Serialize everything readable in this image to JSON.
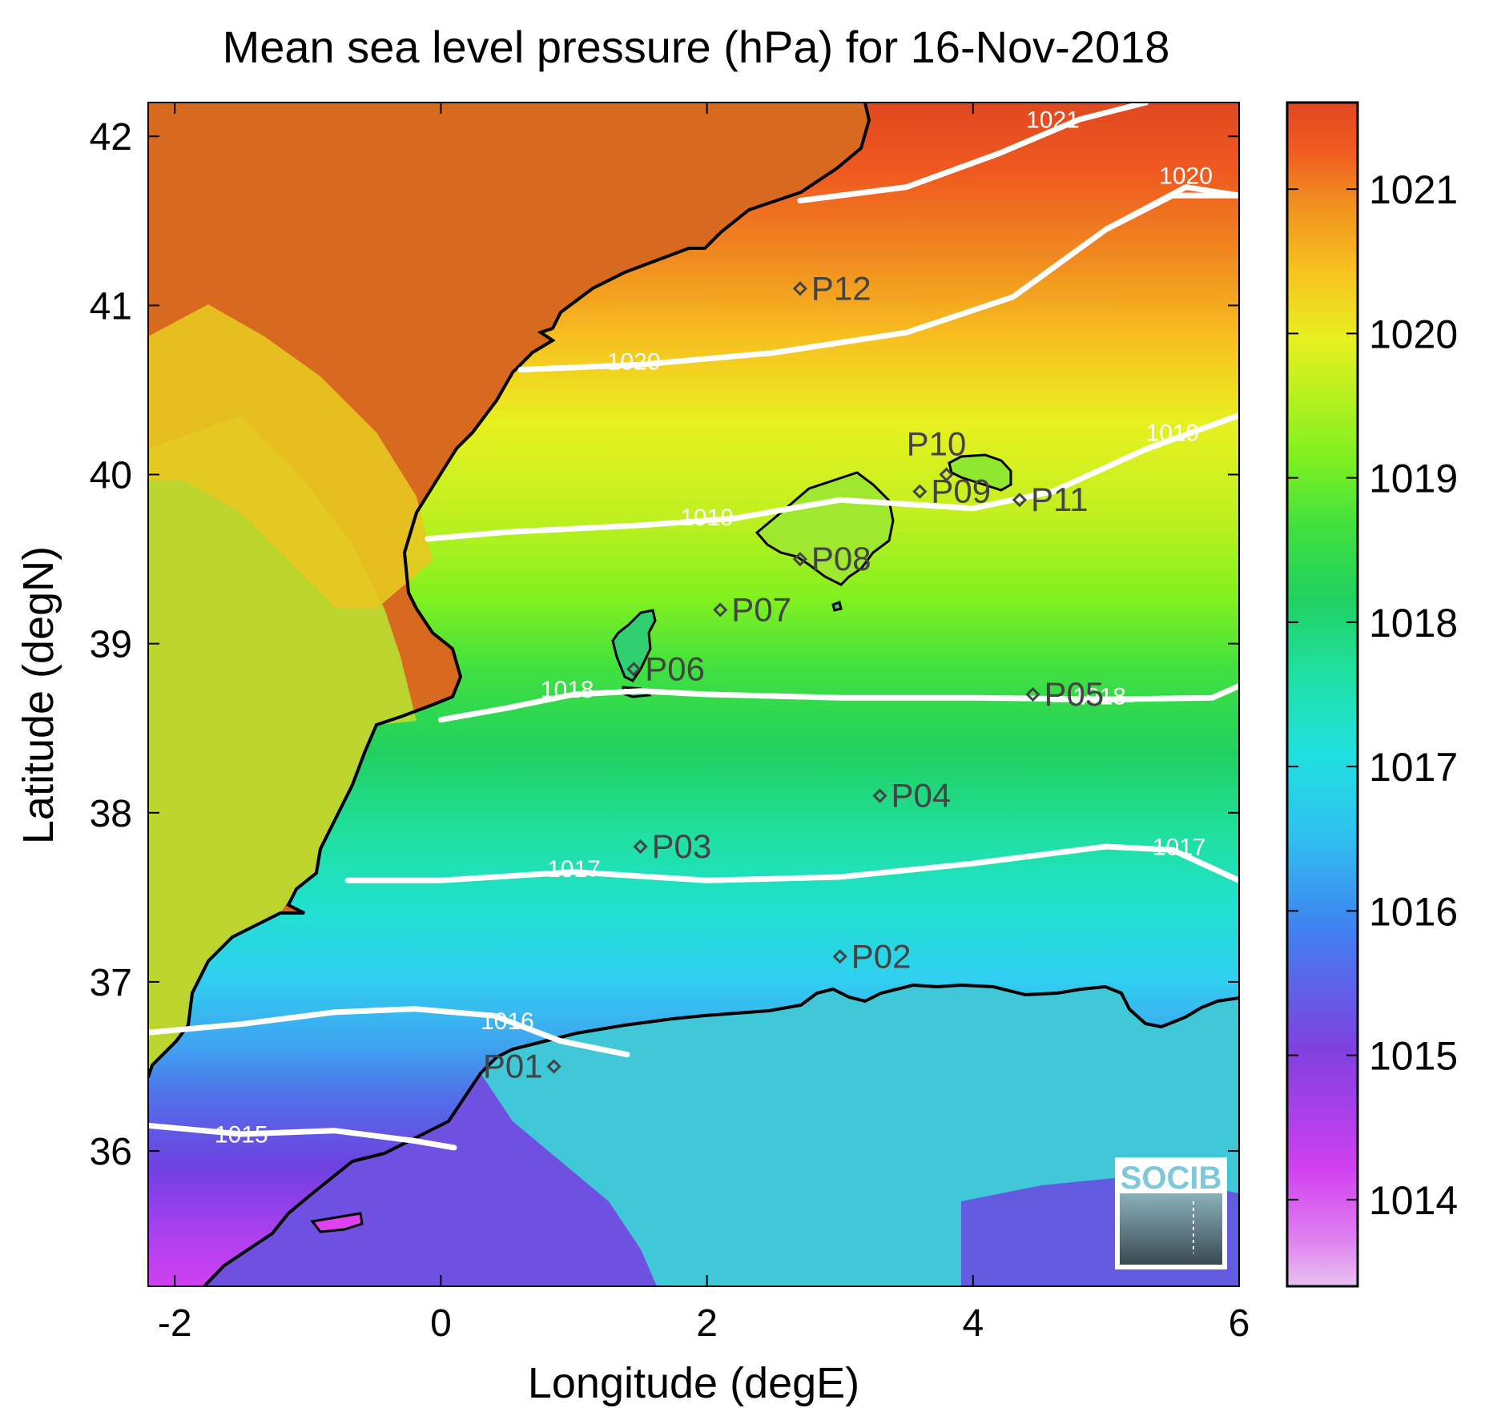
{
  "title": "Mean sea level pressure (hPa) for 16-Nov-2018",
  "xlabel": "Longitude (degE)",
  "ylabel": "Latitude (degN)",
  "map": {
    "xlim": [
      -2.2,
      6.0
    ],
    "ylim": [
      35.2,
      42.2
    ],
    "xticks": [
      -2,
      0,
      2,
      4,
      6
    ],
    "yticks": [
      36,
      37,
      38,
      39,
      40,
      41,
      42
    ],
    "xtick_labels": [
      "-2",
      "0",
      "2",
      "4",
      "6"
    ],
    "ytick_labels": [
      "36",
      "37",
      "38",
      "39",
      "40",
      "41",
      "42"
    ]
  },
  "colorbar": {
    "range": [
      1013.4,
      1021.6
    ],
    "ticks": [
      1014,
      1015,
      1016,
      1017,
      1018,
      1019,
      1020,
      1021
    ],
    "tick_labels": [
      "1014",
      "1015",
      "1016",
      "1017",
      "1018",
      "1019",
      "1020",
      "1021"
    ],
    "colors": [
      "#e8b4f0",
      "#d83cf0",
      "#8040e0",
      "#4080f0",
      "#20e0e0",
      "#20d060",
      "#80f020",
      "#e8f020",
      "#f8a020",
      "#f05a20",
      "#e04820"
    ]
  },
  "contours": [
    {
      "label": "1015",
      "value": 1015,
      "points": [
        [
          -2.2,
          36.15
        ],
        [
          -1.5,
          36.1
        ],
        [
          -0.8,
          36.12
        ],
        [
          -0.2,
          36.06
        ],
        [
          0.1,
          36.02
        ]
      ],
      "label_at": [
        -1.5,
        36.05
      ]
    },
    {
      "label": "1016",
      "value": 1016,
      "points": [
        [
          -2.2,
          36.7
        ],
        [
          -1.5,
          36.75
        ],
        [
          -0.8,
          36.82
        ],
        [
          -0.2,
          36.84
        ],
        [
          0.4,
          36.8
        ],
        [
          0.9,
          36.65
        ],
        [
          1.4,
          36.57
        ]
      ],
      "label_at": [
        0.5,
        36.72
      ]
    },
    {
      "label": "1017",
      "value": 1017,
      "points": [
        [
          -0.7,
          37.6
        ],
        [
          0.0,
          37.6
        ],
        [
          1.0,
          37.65
        ],
        [
          2.0,
          37.6
        ],
        [
          3.0,
          37.62
        ],
        [
          4.0,
          37.7
        ],
        [
          5.0,
          37.8
        ],
        [
          5.5,
          37.78
        ],
        [
          6.0,
          37.6
        ]
      ],
      "label_at": [
        1.0,
        37.62
      ]
    },
    {
      "label": "1017",
      "value": 1017,
      "points": [
        [
          5.5,
          37.78
        ],
        [
          6.0,
          37.6
        ]
      ],
      "label_at": [
        5.55,
        37.75
      ]
    },
    {
      "label": "1018",
      "value": 1018,
      "points": [
        [
          0.0,
          38.55
        ],
        [
          0.5,
          38.62
        ],
        [
          1.0,
          38.7
        ],
        [
          1.5,
          38.72
        ],
        [
          2.0,
          38.7
        ],
        [
          3.0,
          38.68
        ],
        [
          4.0,
          38.68
        ],
        [
          5.0,
          38.67
        ],
        [
          5.8,
          38.68
        ],
        [
          6.0,
          38.75
        ]
      ],
      "label_at": [
        0.95,
        38.68
      ]
    },
    {
      "label": "1018",
      "value": 1018,
      "points": [
        [
          4.6,
          38.67
        ],
        [
          5.2,
          38.67
        ]
      ],
      "label_at": [
        4.95,
        38.64
      ]
    },
    {
      "label": "1019",
      "value": 1019,
      "points": [
        [
          -0.1,
          39.62
        ],
        [
          0.5,
          39.66
        ],
        [
          1.5,
          39.7
        ],
        [
          2.2,
          39.74
        ],
        [
          3.0,
          39.85
        ],
        [
          4.0,
          39.8
        ],
        [
          4.6,
          39.9
        ],
        [
          5.3,
          40.15
        ],
        [
          6.0,
          40.35
        ]
      ],
      "label_at": [
        2.0,
        39.7
      ]
    },
    {
      "label": "1019",
      "value": 1019,
      "points": [
        [
          5.3,
          40.15
        ],
        [
          6.0,
          40.35
        ]
      ],
      "label_at": [
        5.5,
        40.2
      ]
    },
    {
      "label": "1020",
      "value": 1020,
      "points": [
        [
          0.6,
          40.62
        ],
        [
          1.5,
          40.65
        ],
        [
          2.5,
          40.72
        ],
        [
          3.5,
          40.84
        ],
        [
          4.3,
          41.05
        ],
        [
          5.0,
          41.45
        ],
        [
          5.5,
          41.65
        ],
        [
          6.0,
          41.65
        ]
      ],
      "label_at": [
        1.45,
        40.62
      ]
    },
    {
      "label": "1020",
      "value": 1020,
      "points": [
        [
          5.0,
          41.45
        ],
        [
          5.6,
          41.7
        ],
        [
          6.0,
          41.65
        ]
      ],
      "label_at": [
        5.6,
        41.72
      ]
    },
    {
      "label": "1021",
      "value": 1021,
      "points": [
        [
          2.7,
          41.62
        ],
        [
          3.5,
          41.7
        ],
        [
          4.2,
          41.9
        ],
        [
          4.8,
          42.1
        ],
        [
          5.3,
          42.2
        ]
      ],
      "label_at": [
        4.6,
        42.05
      ]
    }
  ],
  "stations": [
    {
      "name": "P01",
      "lon": 0.85,
      "lat": 36.5
    },
    {
      "name": "P02",
      "lon": 3.0,
      "lat": 37.15
    },
    {
      "name": "P03",
      "lon": 1.5,
      "lat": 37.8
    },
    {
      "name": "P04",
      "lon": 3.3,
      "lat": 38.1
    },
    {
      "name": "P05",
      "lon": 4.45,
      "lat": 38.7
    },
    {
      "name": "P06",
      "lon": 1.45,
      "lat": 38.85
    },
    {
      "name": "P07",
      "lon": 2.1,
      "lat": 39.2
    },
    {
      "name": "P08",
      "lon": 2.7,
      "lat": 39.5
    },
    {
      "name": "P09",
      "lon": 3.6,
      "lat": 39.9
    },
    {
      "name": "P10",
      "lon": 3.8,
      "lat": 40.0
    },
    {
      "name": "P11",
      "lon": 4.35,
      "lat": 39.85
    },
    {
      "name": "P12",
      "lon": 2.7,
      "lat": 41.1
    }
  ],
  "logo": {
    "text": "SOCIB"
  }
}
